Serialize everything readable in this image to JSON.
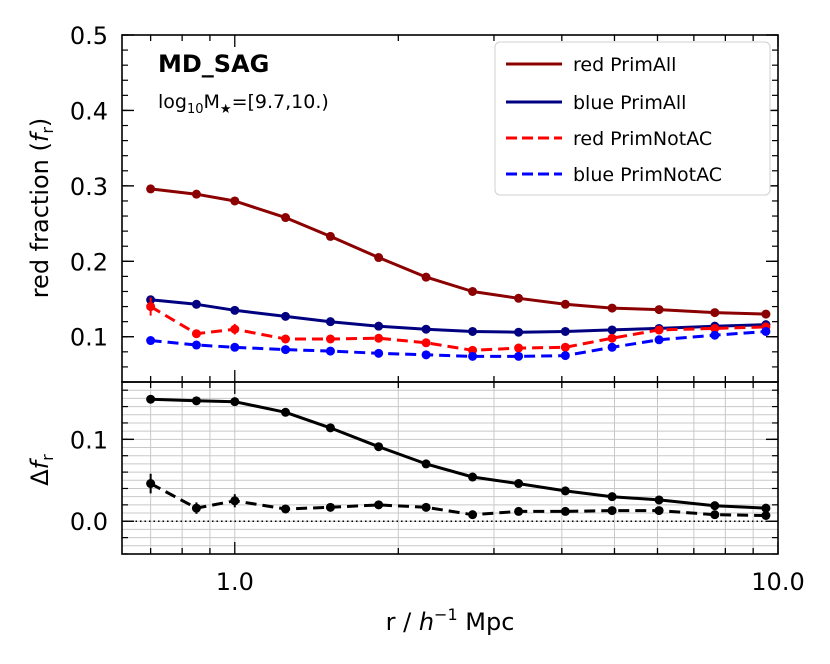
{
  "chart_data": [
    {
      "type": "line",
      "panel": "top",
      "title": "MD_SAG",
      "subtitle_prefix": "log",
      "subtitle_sub": "10",
      "subtitle_mid": "M",
      "subtitle_star": "★",
      "subtitle_suffix": "=[9.7,10.)",
      "ylabel_main": "red fraction (",
      "ylabel_f": "f",
      "ylabel_sub": "r",
      "ylabel_close": ")",
      "xscale": "log",
      "xlim": [
        0.62,
        10.0
      ],
      "ylim": [
        0.04,
        0.5
      ],
      "yticks": [
        "0.1",
        "0.2",
        "0.3",
        "0.4",
        "0.5"
      ],
      "ytick_values": [
        0.1,
        0.2,
        0.3,
        0.4,
        0.5
      ],
      "legend_position": "top-right",
      "x": [
        0.7,
        0.85,
        1.0,
        1.24,
        1.5,
        1.84,
        2.25,
        2.74,
        3.33,
        4.06,
        4.95,
        6.04,
        7.65,
        9.5
      ],
      "series": [
        {
          "name": "red PrimAll",
          "color": "#8b0000",
          "dashed": false,
          "values": [
            0.296,
            0.289,
            0.28,
            0.258,
            0.233,
            0.205,
            0.179,
            0.16,
            0.151,
            0.143,
            0.138,
            0.136,
            0.132,
            0.13
          ],
          "errors": [
            0,
            0,
            0,
            0,
            0,
            0,
            0,
            0,
            0,
            0,
            0,
            0,
            0,
            0
          ]
        },
        {
          "name": "blue PrimAll",
          "color": "#000080",
          "dashed": false,
          "values": [
            0.149,
            0.143,
            0.135,
            0.127,
            0.12,
            0.114,
            0.11,
            0.107,
            0.106,
            0.107,
            0.109,
            0.111,
            0.114,
            0.116
          ],
          "errors": [
            0,
            0,
            0,
            0,
            0,
            0,
            0,
            0,
            0,
            0,
            0,
            0,
            0,
            0
          ]
        },
        {
          "name": "red PrimNotAC",
          "color": "#ff0000",
          "dashed": true,
          "values": [
            0.14,
            0.104,
            0.11,
            0.097,
            0.097,
            0.098,
            0.092,
            0.082,
            0.085,
            0.086,
            0.098,
            0.109,
            0.111,
            0.113
          ],
          "errors": [
            0.012,
            0.005,
            0.007,
            0.004,
            0.003,
            0.003,
            0.003,
            0.003,
            0.003,
            0.003,
            0.003,
            0.003,
            0.003,
            0.003
          ]
        },
        {
          "name": "blue PrimNotAC",
          "color": "#0000ff",
          "dashed": true,
          "values": [
            0.095,
            0.089,
            0.086,
            0.083,
            0.081,
            0.078,
            0.076,
            0.074,
            0.074,
            0.075,
            0.086,
            0.096,
            0.102,
            0.107
          ],
          "errors": [
            0,
            0,
            0,
            0,
            0,
            0,
            0,
            0,
            0,
            0,
            0,
            0,
            0,
            0
          ]
        }
      ]
    },
    {
      "type": "line",
      "panel": "bottom",
      "ylabel_delta": "Δ",
      "ylabel_f": "f",
      "ylabel_sub": "r",
      "xlabel_main": "r / ",
      "xlabel_h": "h",
      "xlabel_exp": "−1",
      "xlabel_unit": " Mpc",
      "xscale": "log",
      "xlim": [
        0.62,
        10.0
      ],
      "ylim": [
        -0.04,
        0.17
      ],
      "yticks": [
        "0.0",
        "0.1"
      ],
      "ytick_values": [
        0.0,
        0.1
      ],
      "xticks": [
        "1.0",
        "10.0"
      ],
      "xtick_values": [
        1.0,
        10.0
      ],
      "reference_line": 0.0,
      "x": [
        0.7,
        0.85,
        1.0,
        1.24,
        1.5,
        1.84,
        2.25,
        2.74,
        3.33,
        4.06,
        4.95,
        6.04,
        7.65,
        9.5
      ],
      "series": [
        {
          "name": "PrimAll difference",
          "color": "#000000",
          "dashed": false,
          "values": [
            0.149,
            0.147,
            0.146,
            0.133,
            0.114,
            0.091,
            0.07,
            0.054,
            0.046,
            0.037,
            0.03,
            0.026,
            0.019,
            0.016
          ],
          "errors": [
            0,
            0,
            0,
            0,
            0,
            0,
            0,
            0,
            0,
            0,
            0,
            0,
            0,
            0
          ]
        },
        {
          "name": "PrimNotAC difference",
          "color": "#000000",
          "dashed": true,
          "values": [
            0.046,
            0.016,
            0.025,
            0.015,
            0.017,
            0.02,
            0.017,
            0.008,
            0.012,
            0.012,
            0.013,
            0.013,
            0.008,
            0.007
          ],
          "errors": [
            0.012,
            0.007,
            0.008,
            0.004,
            0.004,
            0.004,
            0.003,
            0.003,
            0.003,
            0.003,
            0.003,
            0.003,
            0.003,
            0.003
          ]
        }
      ]
    }
  ]
}
